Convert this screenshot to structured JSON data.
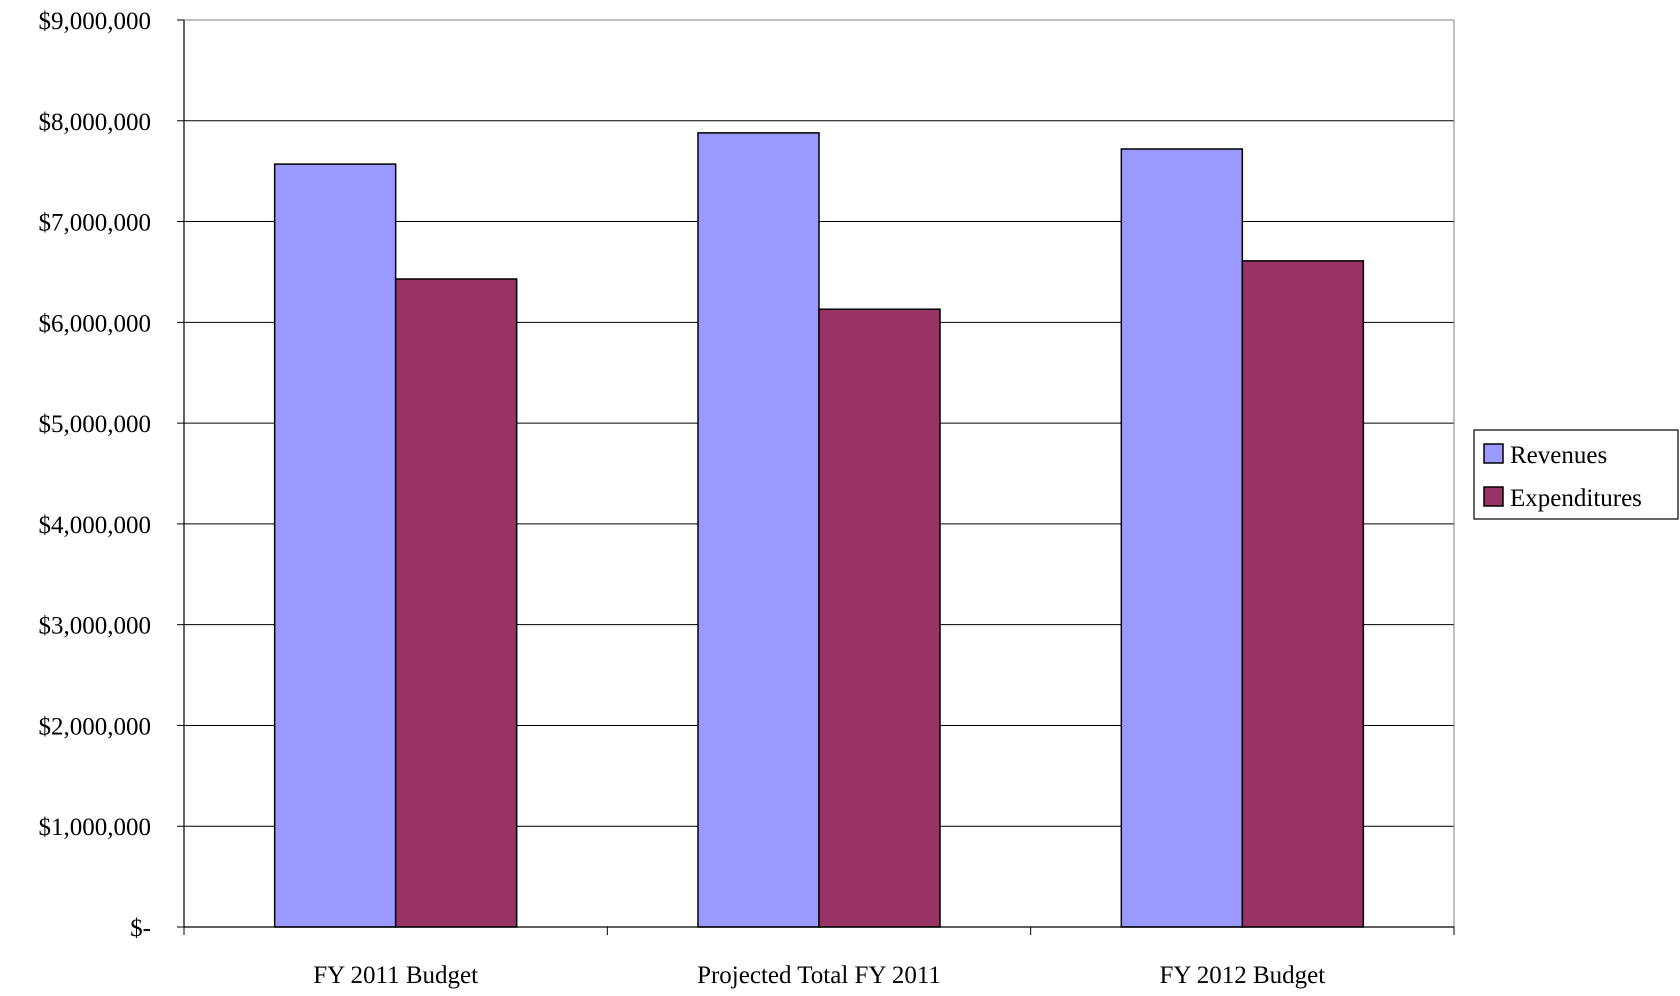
{
  "chart_data": {
    "type": "bar",
    "title": "",
    "xlabel": "",
    "ylabel": "",
    "ylim": [
      0,
      9000000
    ],
    "yticks": [
      {
        "value": 0,
        "label": "$-"
      },
      {
        "value": 1000000,
        "label": "$1,000,000"
      },
      {
        "value": 2000000,
        "label": "$2,000,000"
      },
      {
        "value": 3000000,
        "label": "$3,000,000"
      },
      {
        "value": 4000000,
        "label": "$4,000,000"
      },
      {
        "value": 5000000,
        "label": "$5,000,000"
      },
      {
        "value": 6000000,
        "label": "$6,000,000"
      },
      {
        "value": 7000000,
        "label": "$7,000,000"
      },
      {
        "value": 8000000,
        "label": "$8,000,000"
      },
      {
        "value": 9000000,
        "label": "$9,000,000"
      }
    ],
    "grid": true,
    "legend_position": "right",
    "categories": [
      "FY 2011 Budget",
      "Projected Total FY 2011",
      "FY 2012 Budget"
    ],
    "series": [
      {
        "name": "Revenues",
        "color": "#9999ff",
        "values": [
          7570000,
          7880000,
          7720000
        ]
      },
      {
        "name": "Expenditures",
        "color": "#993366",
        "values": [
          6430000,
          6130000,
          6610000
        ]
      }
    ]
  }
}
